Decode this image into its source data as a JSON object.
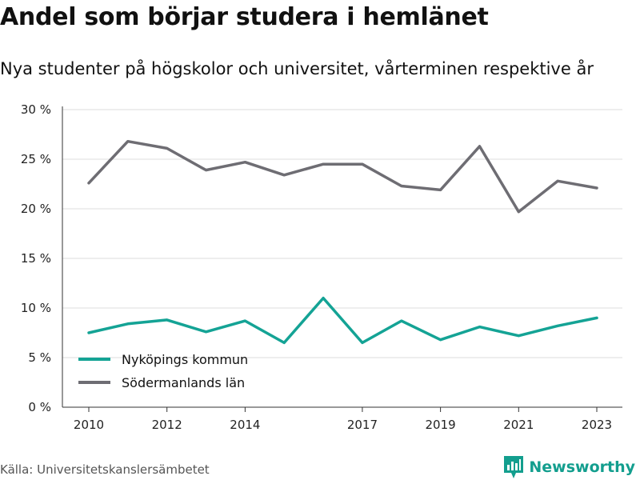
{
  "colors": {
    "nykoping": "#14a395",
    "sodermanland": "#6e6d73",
    "grid": "#dcdcdc",
    "brand": "#139e8e"
  },
  "header": {
    "title": "Andel som börjar studera i hemlänet",
    "subtitle": "Nya studenter på högskolor och universitet, vårterminen respektive år"
  },
  "footer": {
    "source": "Källa: Universitetskanslersämbetet",
    "brand": "Newsworthy",
    "brand_icon": "newsworthy-logo-icon"
  },
  "chart_data": {
    "type": "line",
    "title": "Andel som börjar studera i hemlänet",
    "subtitle": "Nya studenter på högskolor och universitet, vårterminen respektive år",
    "x": [
      2010,
      2011,
      2012,
      2013,
      2014,
      2015,
      2016,
      2017,
      2018,
      2019,
      2020,
      2021,
      2022,
      2023
    ],
    "x_ticks": [
      2010,
      2012,
      2014,
      2017,
      2019,
      2021,
      2023
    ],
    "x_tick_labels": [
      "2010",
      "2012",
      "2014",
      "2017",
      "2019",
      "2021",
      "2023"
    ],
    "ylim": [
      0,
      30
    ],
    "y_ticks": [
      0,
      5,
      10,
      15,
      20,
      25,
      30
    ],
    "y_tick_labels": [
      "0 %",
      "5 %",
      "10 %",
      "15 %",
      "20 %",
      "25 %",
      "30 %"
    ],
    "grid": "horizontal",
    "legend_position": "bottom-left",
    "series": [
      {
        "name": "Nyköpings kommun",
        "color": "#14a395",
        "values": [
          7.5,
          8.4,
          8.8,
          7.6,
          8.7,
          6.5,
          11.0,
          6.5,
          8.7,
          6.8,
          8.1,
          7.2,
          8.2,
          9.0
        ]
      },
      {
        "name": "Södermanlands län",
        "color": "#6e6d73",
        "values": [
          22.6,
          26.8,
          26.1,
          23.9,
          24.7,
          23.4,
          24.5,
          24.5,
          22.3,
          21.9,
          26.3,
          19.7,
          22.8,
          22.1
        ]
      }
    ]
  }
}
